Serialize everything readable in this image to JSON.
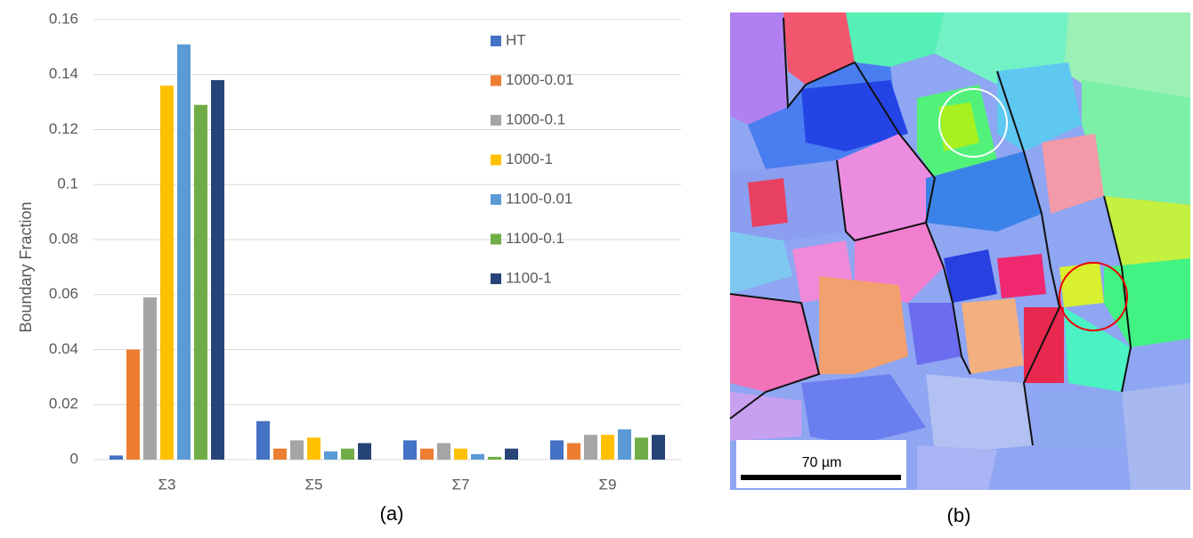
{
  "chart_data": {
    "type": "bar",
    "y_label": "Boundary  Fraction",
    "x_label": "(a)",
    "categories": [
      "Σ3",
      "Σ5",
      "Σ7",
      "Σ9"
    ],
    "series": [
      {
        "name": "HT",
        "color": "#4472c4",
        "values": [
          0.0015,
          0.014,
          0.007,
          0.007
        ]
      },
      {
        "name": "1000-0.01",
        "color": "#ed7d31",
        "values": [
          0.04,
          0.004,
          0.004,
          0.006
        ]
      },
      {
        "name": "1000-0.1",
        "color": "#a5a5a5",
        "values": [
          0.059,
          0.007,
          0.006,
          0.009
        ]
      },
      {
        "name": "1000-1",
        "color": "#ffc000",
        "values": [
          0.136,
          0.008,
          0.004,
          0.009
        ]
      },
      {
        "name": "1100-0.01",
        "color": "#5b9bd5",
        "values": [
          0.151,
          0.003,
          0.002,
          0.011
        ]
      },
      {
        "name": "1100-0.1",
        "color": "#70ad47",
        "values": [
          0.129,
          0.004,
          0.001,
          0.008
        ]
      },
      {
        "name": "1100-1",
        "color": "#264478",
        "values": [
          0.138,
          0.006,
          0.004,
          0.009
        ]
      }
    ],
    "ylim": [
      0,
      0.16
    ],
    "yticks": [
      0,
      0.02,
      0.04,
      0.06,
      0.08,
      0.1,
      0.12,
      0.14,
      0.16
    ],
    "grid": true
  },
  "map_panel": {
    "label": "(b)",
    "scale_bar": "70 µm"
  }
}
